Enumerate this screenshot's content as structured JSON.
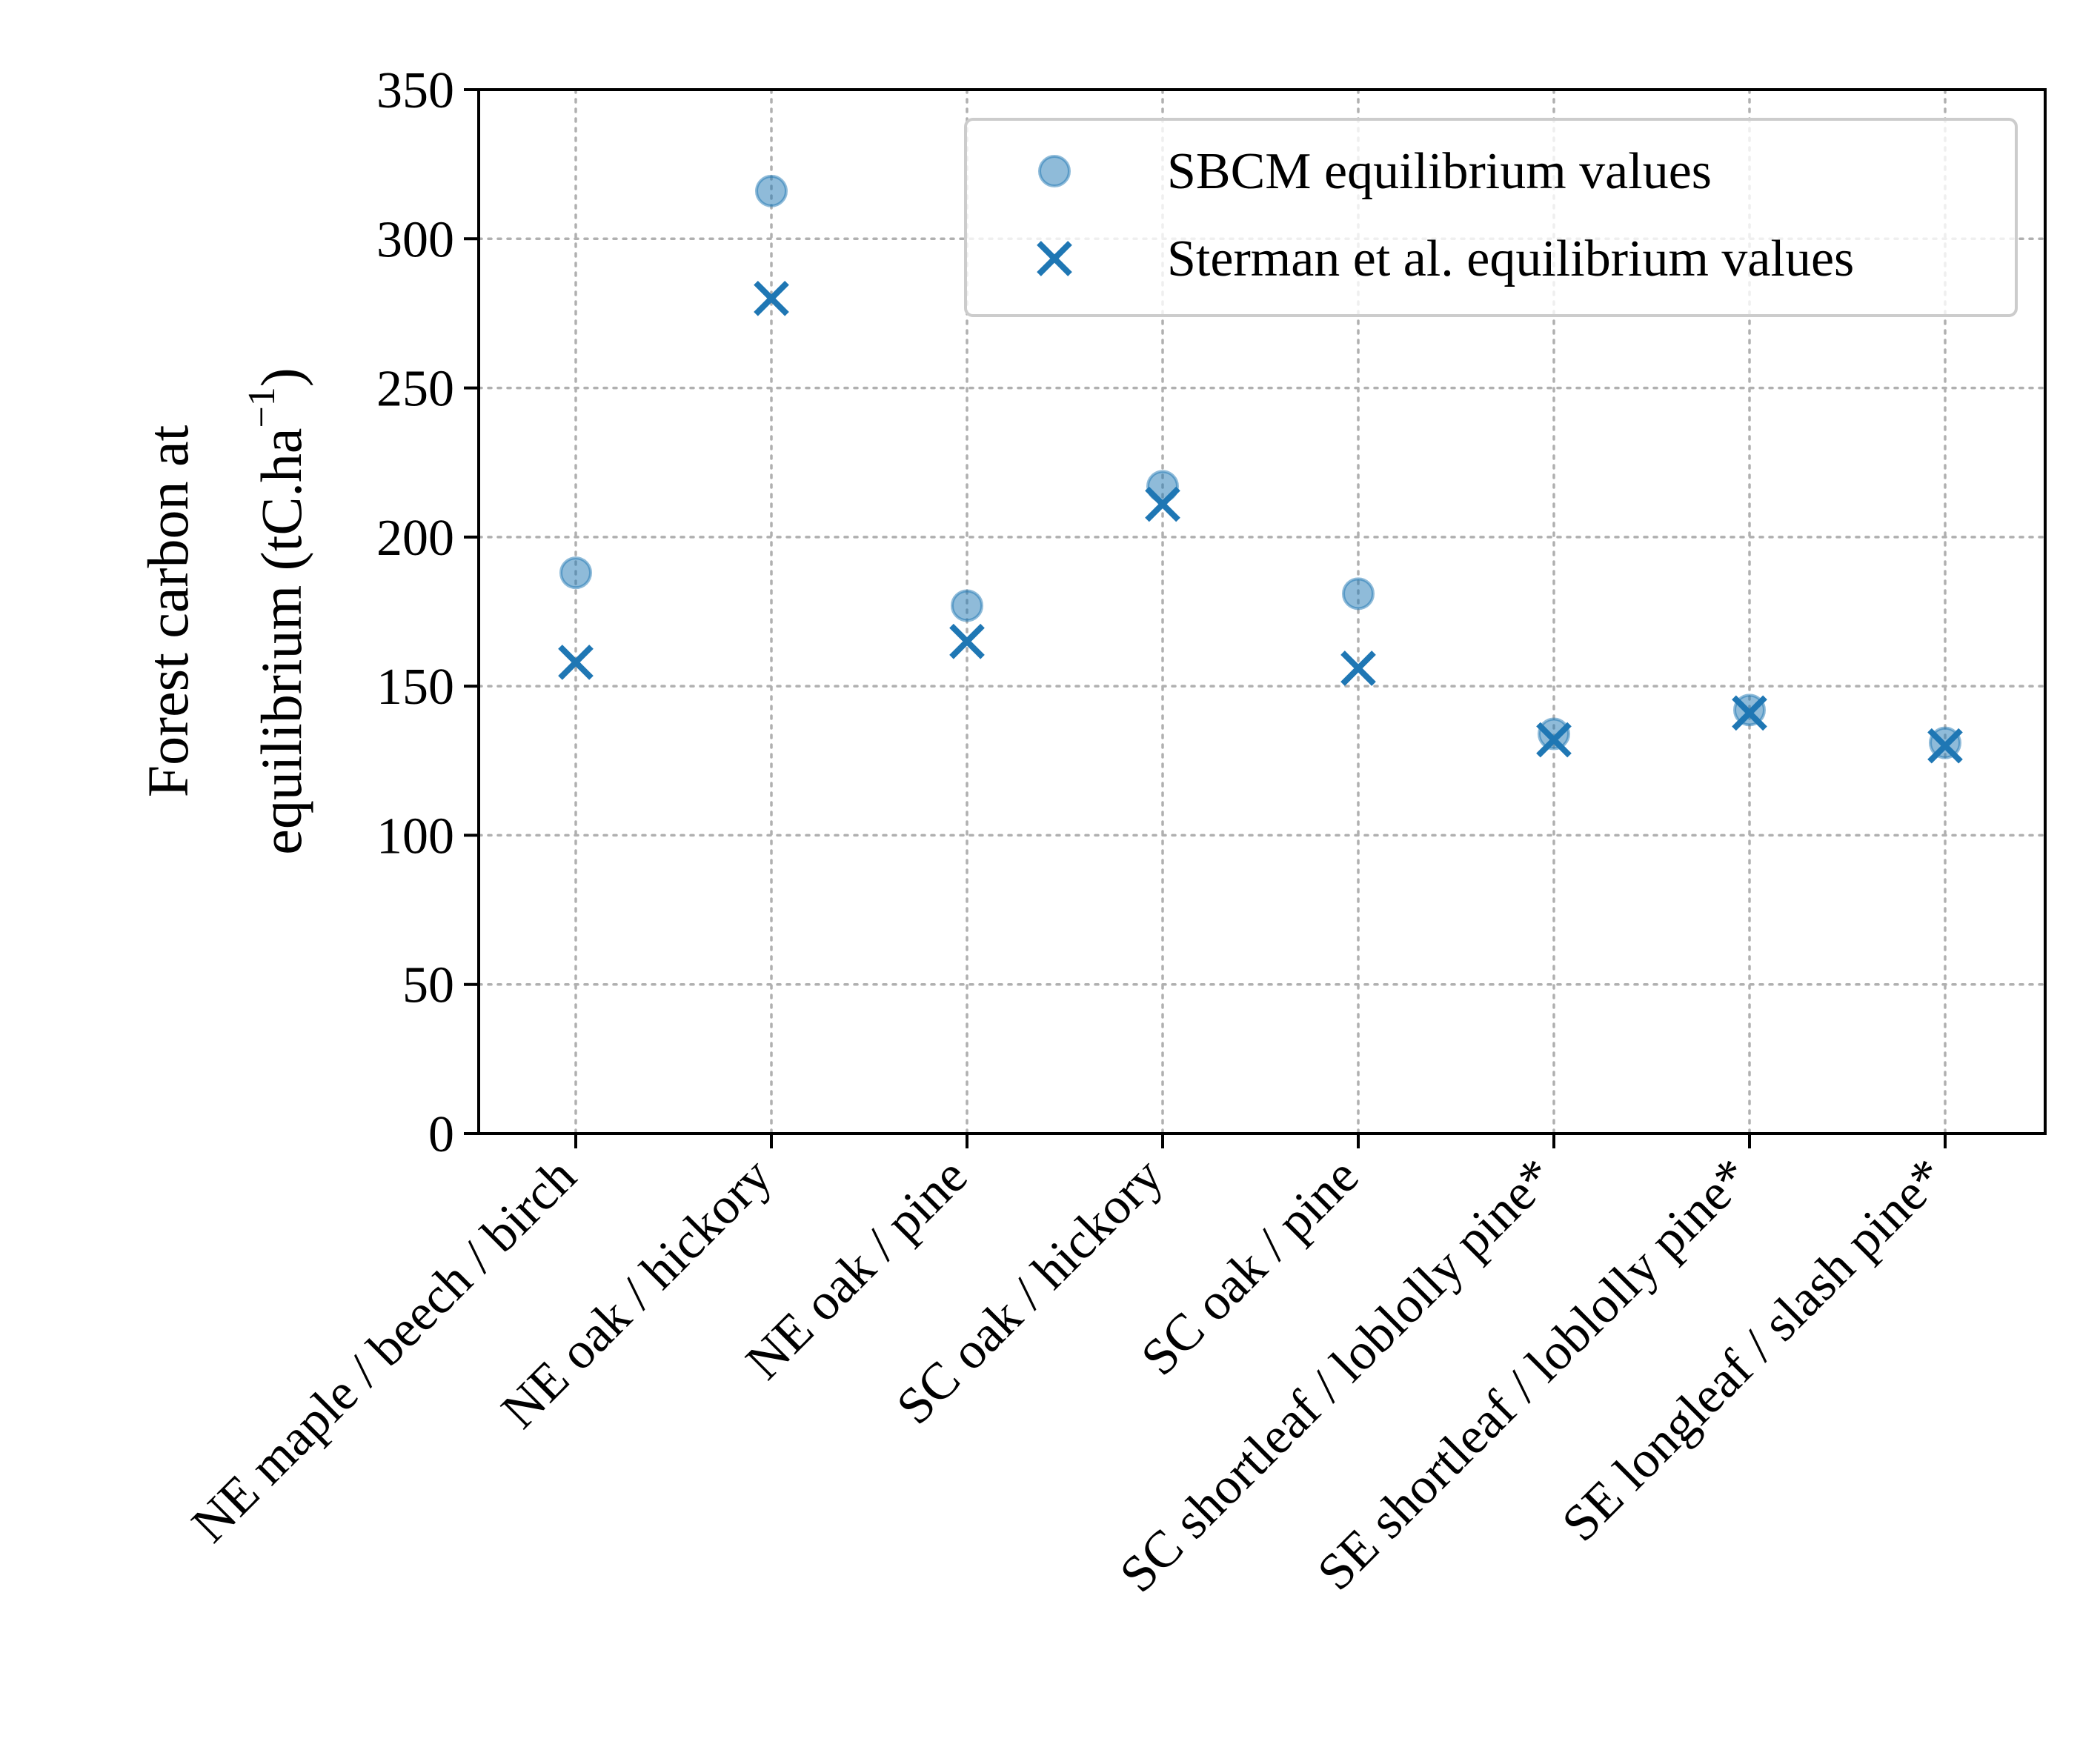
{
  "chart_data": {
    "type": "scatter",
    "categories": [
      "NE maple / beech / birch",
      "NE oak / hickory",
      "NE oak / pine",
      "SC oak / hickory",
      "SC oak / pine",
      "SC shortleaf / loblolly pine*",
      "SE shortleaf / loblolly pine*",
      "SE longleaf / slash pine*"
    ],
    "series": [
      {
        "name": "SBCM equilibrium values",
        "marker": "circle",
        "color": "#1f77b4",
        "values": [
          188,
          316,
          177,
          217,
          181,
          134,
          142,
          131
        ]
      },
      {
        "name": "Sterman et al. equilibrium values",
        "marker": "x",
        "color": "#1f77b4",
        "values": [
          158,
          280,
          165,
          211,
          156,
          132,
          141,
          130
        ]
      }
    ],
    "ylabel_line1": "Forest carbon at",
    "ylabel_line2": "equilibrium (tC.ha",
    "ylabel_sup": "−1",
    "ylabel_close": ")",
    "xlabel": "",
    "ylim": [
      0,
      350
    ],
    "yticks": [
      "0",
      "50",
      "100",
      "150",
      "200",
      "250",
      "300",
      "350"
    ],
    "grid": true,
    "legend_position": "top-right"
  }
}
